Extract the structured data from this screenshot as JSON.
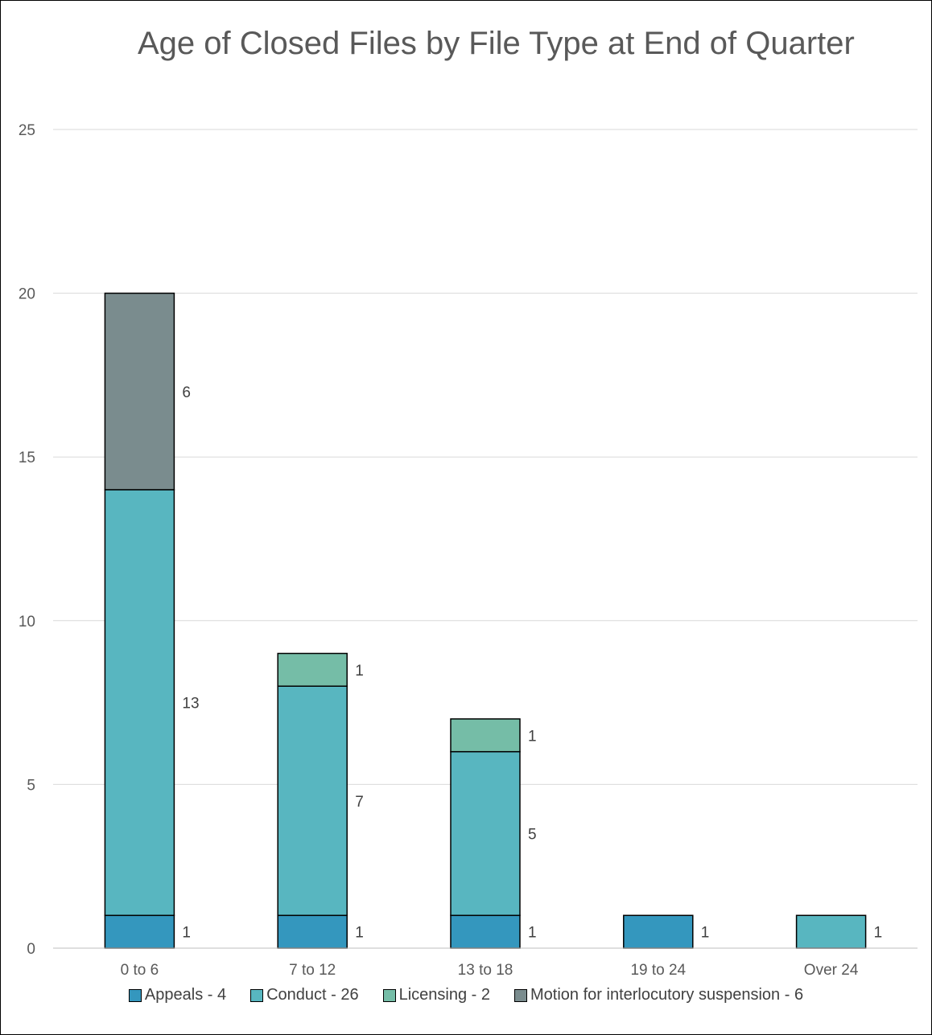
{
  "chart_data": {
    "type": "bar",
    "stacked": true,
    "title": "Age of Closed Files by File Type at End of Quarter",
    "categories": [
      "0 to 6",
      "7 to 12",
      "13 to 18",
      "19 to 24",
      "Over 24"
    ],
    "yticks": [
      "0",
      "5",
      "10",
      "15",
      "20",
      "25"
    ],
    "ylim": [
      0,
      25
    ],
    "grid": true,
    "legend_position": "bottom",
    "series": [
      {
        "name": "Appeals - 4",
        "color": "#3497BE",
        "values": [
          1,
          1,
          1,
          1,
          0
        ]
      },
      {
        "name": "Conduct - 26",
        "color": "#58B6C0",
        "values": [
          13,
          7,
          5,
          0,
          1
        ]
      },
      {
        "name": "Licensing - 2",
        "color": "#75BDA7",
        "values": [
          0,
          1,
          1,
          0,
          0
        ]
      },
      {
        "name": "Motion for interlocutory suspension - 6",
        "color": "#7A8C8E",
        "values": [
          6,
          0,
          0,
          0,
          0
        ]
      }
    ]
  }
}
